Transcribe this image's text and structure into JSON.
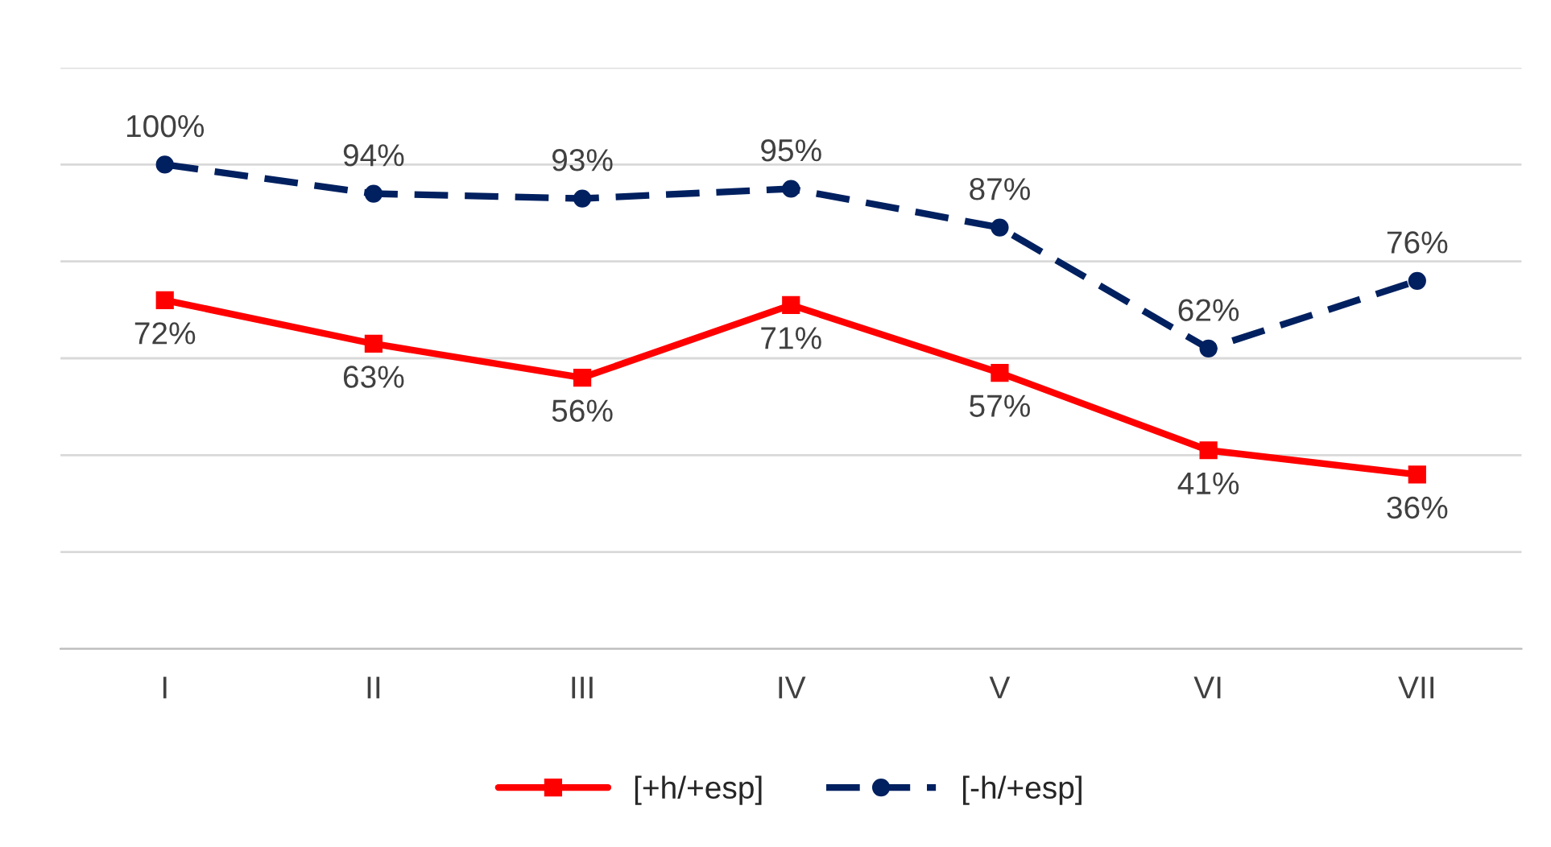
{
  "chart_data": {
    "type": "line",
    "categories": [
      "I",
      "II",
      "III",
      "IV",
      "V",
      "VI",
      "VII"
    ],
    "series": [
      {
        "name": "[+h/+esp]",
        "color": "#ff0000",
        "marker": "square",
        "line_style": "solid",
        "values": [
          72,
          63,
          56,
          71,
          57,
          41,
          36
        ],
        "value_labels": [
          "72%",
          "63%",
          "56%",
          "71%",
          "57%",
          "41%",
          "36%"
        ]
      },
      {
        "name": "[-h/+esp]",
        "color": "#002060",
        "marker": "circle",
        "line_style": "dashed",
        "values": [
          100,
          94,
          93,
          95,
          87,
          62,
          76
        ],
        "value_labels": [
          "100%",
          "94%",
          "93%",
          "95%",
          "87%",
          "62%",
          "76%"
        ]
      }
    ],
    "ylim": [
      0,
      120
    ],
    "yticks": [
      {
        "value": 0,
        "label": null
      },
      {
        "value": 20,
        "label": null
      },
      {
        "value": 40,
        "label": null
      },
      {
        "value": 60,
        "label": null
      },
      {
        "value": 80,
        "label": null
      },
      {
        "value": 100,
        "label": null
      },
      {
        "value": 120,
        "label": null
      }
    ],
    "tick_labels": "x",
    "grid": "y",
    "legend": "bottom"
  }
}
